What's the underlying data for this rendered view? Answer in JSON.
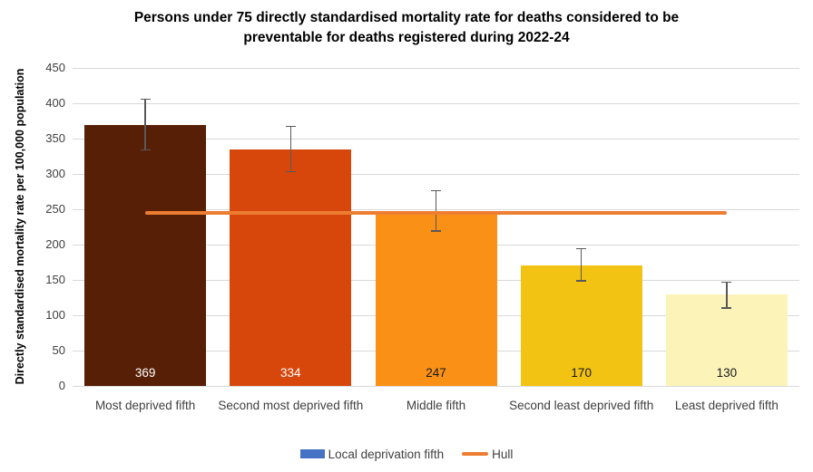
{
  "chart_data": {
    "type": "bar",
    "title": "Persons under 75 directly standardised mortality rate for deaths considered to be preventable for deaths registered during 2022-24",
    "xlabel": "",
    "ylabel": "Directly standardised mortality rate per 100,000 population",
    "ylim": [
      0,
      450
    ],
    "yticks": [
      0,
      50,
      100,
      150,
      200,
      250,
      300,
      350,
      400,
      450
    ],
    "grid": true,
    "categories": [
      "Most deprived fifth",
      "Second most deprived fifth",
      "Middle fifth",
      "Second least deprived fifth",
      "Least deprived fifth"
    ],
    "series": [
      {
        "name": "Local deprivation fifth",
        "type": "bar",
        "values": [
          369,
          334,
          247,
          170,
          130
        ],
        "bar_colors": [
          "#571F06",
          "#D7470C",
          "#FA9016",
          "#F2C313",
          "#FBF3B8"
        ],
        "label_colors": [
          "#FFFFFF",
          "#FFFFFF",
          "#1A1A1A",
          "#1A1A1A",
          "#1A1A1A"
        ],
        "error_bars": [
          {
            "low": 334,
            "high": 406
          },
          {
            "low": 303,
            "high": 367
          },
          {
            "low": 219,
            "high": 276
          },
          {
            "low": 149,
            "high": 194
          },
          {
            "low": 110,
            "high": 147
          }
        ]
      },
      {
        "name": "Hull",
        "type": "line",
        "value": 245,
        "color": "#ED7D31"
      }
    ],
    "legend": {
      "position": "bottom",
      "items": [
        {
          "label": "Local deprivation fifth",
          "swatch": "rect",
          "color": "#4472C4"
        },
        {
          "label": "Hull",
          "swatch": "line",
          "color": "#ED7D31"
        }
      ]
    },
    "error_bar_color": "#595959",
    "gridline_color": "#D9D9D9"
  }
}
